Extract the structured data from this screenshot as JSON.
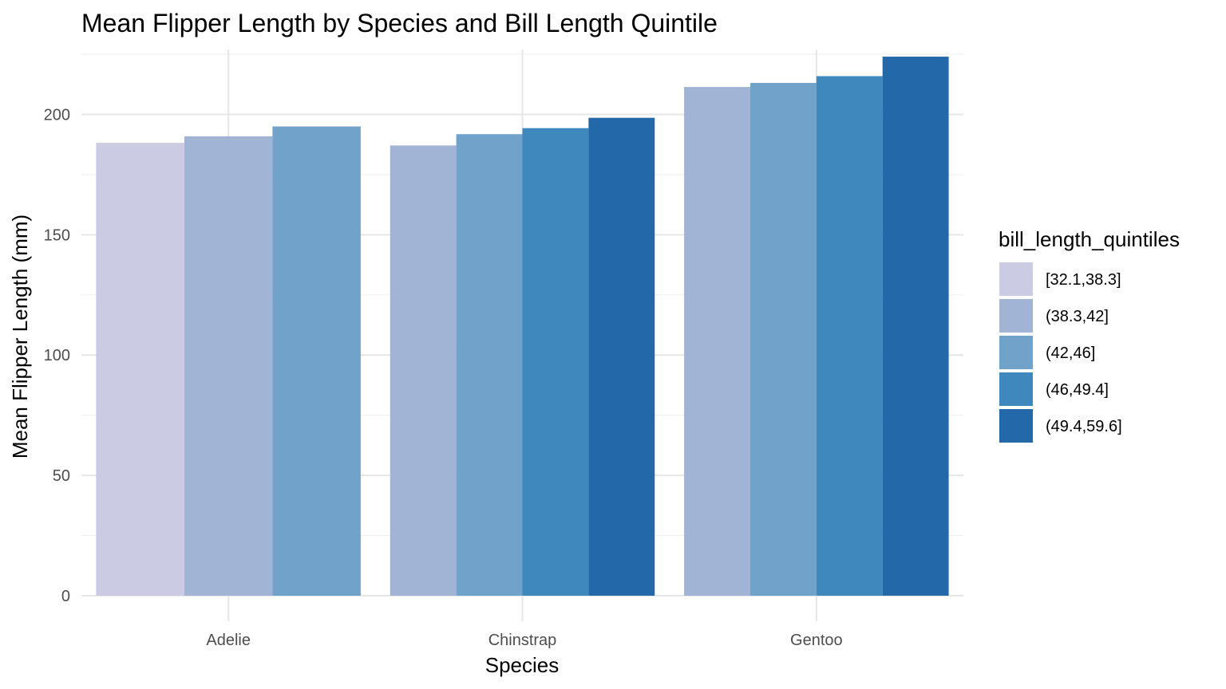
{
  "chart_data": {
    "type": "bar",
    "title": "Mean Flipper Length by Species and Bill Length Quintile",
    "xlabel": "Species",
    "ylabel": "Mean Flipper Length (mm)",
    "ylim": [
      0,
      227
    ],
    "yticks": [
      0,
      50,
      100,
      150,
      200
    ],
    "grid": true,
    "legend_position": "right",
    "legend_title": "bill_length_quintiles",
    "categories": [
      "Adelie",
      "Chinstrap",
      "Gentoo"
    ],
    "series": [
      {
        "name": "[32.1,38.3]",
        "color": "#cbcbe3",
        "values": [
          188.2,
          null,
          null
        ]
      },
      {
        "name": "(38.3,42]",
        "color": "#a1b4d5",
        "values": [
          190.9,
          187.1,
          211.4
        ]
      },
      {
        "name": "(42,46]",
        "color": "#71a2ca",
        "values": [
          195.0,
          191.8,
          213.1
        ]
      },
      {
        "name": "(46,49.4]",
        "color": "#3f88bd",
        "values": [
          null,
          194.3,
          215.9
        ]
      },
      {
        "name": "(49.4,59.6]",
        "color": "#2368a9",
        "values": [
          null,
          198.6,
          224.0
        ]
      }
    ]
  }
}
